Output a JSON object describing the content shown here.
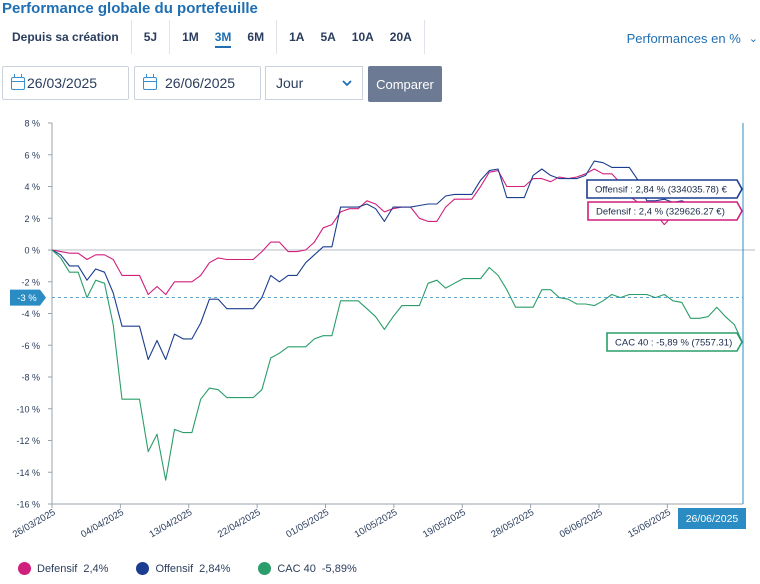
{
  "header": {
    "title": "Performance globale du portefeuille",
    "perf_label": "Performances en %"
  },
  "periods": [
    {
      "label": "Depuis sa création",
      "active": false
    },
    {
      "label": "5J",
      "active": false
    },
    {
      "label": "1M",
      "active": false
    },
    {
      "label": "3M",
      "active": true
    },
    {
      "label": "6M",
      "active": false
    },
    {
      "label": "1A",
      "active": false
    },
    {
      "label": "5A",
      "active": false
    },
    {
      "label": "10A",
      "active": false
    },
    {
      "label": "20A",
      "active": false
    }
  ],
  "controls": {
    "start_date": "26/03/2025",
    "end_date": "26/06/2025",
    "frequency": "Jour",
    "compare_label": "Comparer"
  },
  "colors": {
    "defensif": "#d11f7c",
    "offensif": "#1b3d8f",
    "cac40": "#2a9d6a",
    "accent": "#2b8cc4"
  },
  "chart_data": {
    "type": "line",
    "ylim": [
      -16,
      8
    ],
    "yticks": [
      8,
      6,
      4,
      2,
      0,
      -2,
      -4,
      -6,
      -8,
      -10,
      -12,
      -14,
      -16
    ],
    "ytick_labels": [
      "8 %",
      "6 %",
      "4 %",
      "2 %",
      "0 %",
      "-2 %",
      "-4 %",
      "-6 %",
      "-8 %",
      "-10 %",
      "-12 %",
      "-14 %",
      "-16 %"
    ],
    "x_tick_labels": [
      "26/03/2025",
      "04/04/2025",
      "13/04/2025",
      "22/04/2025",
      "01/05/2025",
      "10/05/2025",
      "19/05/2025",
      "28/05/2025",
      "06/06/2025",
      "15/06/2025"
    ],
    "x_range": [
      "26/03/2025",
      "26/06/2025"
    ],
    "crosshair": {
      "y_label": "-3 %",
      "y_value": -3,
      "x_label": "26/06/2025"
    },
    "series": [
      {
        "name": "Defensif",
        "legend_value": "2,4%",
        "tooltip": "Defensif : 2,4 % (329626.27 €)",
        "points": [
          [
            0,
            0
          ],
          [
            1,
            -0.1
          ],
          [
            2,
            -0.2
          ],
          [
            3,
            -0.2
          ],
          [
            4,
            -0.6
          ],
          [
            5,
            -0.3
          ],
          [
            6,
            -0.3
          ],
          [
            7,
            -0.6
          ],
          [
            8,
            -1.6
          ],
          [
            9,
            -1.6
          ],
          [
            10,
            -1.6
          ],
          [
            11,
            -2.8
          ],
          [
            12,
            -2.3
          ],
          [
            13,
            -2.8
          ],
          [
            14,
            -2.0
          ],
          [
            15,
            -2.0
          ],
          [
            16,
            -2.0
          ],
          [
            17,
            -1.6
          ],
          [
            18,
            -0.8
          ],
          [
            19,
            -0.5
          ],
          [
            20,
            -0.6
          ],
          [
            21,
            -0.6
          ],
          [
            22,
            -0.6
          ],
          [
            23,
            -0.6
          ],
          [
            24,
            -0.1
          ],
          [
            25,
            0.5
          ],
          [
            26,
            0.5
          ],
          [
            27,
            -0.1
          ],
          [
            28,
            -0.1
          ],
          [
            29,
            0.0
          ],
          [
            30,
            0.5
          ],
          [
            31,
            1.4
          ],
          [
            32,
            1.6
          ],
          [
            33,
            2.4
          ],
          [
            34,
            2.6
          ],
          [
            35,
            2.6
          ],
          [
            36,
            3.1
          ],
          [
            37,
            2.9
          ],
          [
            38,
            2.4
          ],
          [
            39,
            2.6
          ],
          [
            40,
            2.7
          ],
          [
            41,
            2.7
          ],
          [
            42,
            2.0
          ],
          [
            43,
            1.8
          ],
          [
            44,
            1.8
          ],
          [
            45,
            2.7
          ],
          [
            46,
            3.2
          ],
          [
            47,
            3.2
          ],
          [
            48,
            3.2
          ],
          [
            49,
            4.0
          ],
          [
            50,
            4.9
          ],
          [
            51,
            5.0
          ],
          [
            52,
            4.0
          ],
          [
            53,
            4.0
          ],
          [
            54,
            4.0
          ],
          [
            55,
            4.5
          ],
          [
            56,
            4.5
          ],
          [
            57,
            4.3
          ],
          [
            58,
            4.6
          ],
          [
            59,
            4.5
          ],
          [
            60,
            4.6
          ],
          [
            61,
            4.8
          ],
          [
            62,
            5.1
          ],
          [
            63,
            4.8
          ],
          [
            64,
            4.8
          ],
          [
            65,
            4.2
          ],
          [
            66,
            3.4
          ],
          [
            67,
            3.0
          ],
          [
            68,
            2.6
          ],
          [
            69,
            2.3
          ],
          [
            70,
            1.6
          ],
          [
            71,
            2.2
          ],
          [
            72,
            2.2
          ],
          [
            73,
            2.4
          ]
        ]
      },
      {
        "name": "Offensif",
        "legend_value": "2,84%",
        "tooltip": "Offensif : 2,84 % (334035.78) €",
        "points": [
          [
            0,
            0
          ],
          [
            1,
            -0.3
          ],
          [
            2,
            -1.0
          ],
          [
            3,
            -1.0
          ],
          [
            4,
            -1.9
          ],
          [
            5,
            -1.2
          ],
          [
            6,
            -1.4
          ],
          [
            7,
            -2.7
          ],
          [
            8,
            -4.8
          ],
          [
            9,
            -4.8
          ],
          [
            10,
            -4.8
          ],
          [
            11,
            -6.9
          ],
          [
            12,
            -5.7
          ],
          [
            13,
            -6.9
          ],
          [
            14,
            -5.3
          ],
          [
            15,
            -5.6
          ],
          [
            16,
            -5.6
          ],
          [
            17,
            -4.6
          ],
          [
            18,
            -3.1
          ],
          [
            19,
            -3.1
          ],
          [
            20,
            -3.7
          ],
          [
            21,
            -3.7
          ],
          [
            22,
            -3.7
          ],
          [
            23,
            -3.7
          ],
          [
            24,
            -3.0
          ],
          [
            25,
            -1.6
          ],
          [
            26,
            -2.0
          ],
          [
            27,
            -1.6
          ],
          [
            28,
            -1.6
          ],
          [
            29,
            -0.8
          ],
          [
            30,
            -0.3
          ],
          [
            31,
            0.2
          ],
          [
            32,
            0.2
          ],
          [
            33,
            2.7
          ],
          [
            34,
            2.7
          ],
          [
            35,
            2.7
          ],
          [
            36,
            2.9
          ],
          [
            37,
            2.6
          ],
          [
            38,
            1.8
          ],
          [
            39,
            2.7
          ],
          [
            40,
            2.7
          ],
          [
            41,
            2.7
          ],
          [
            42,
            2.8
          ],
          [
            43,
            2.9
          ],
          [
            44,
            2.9
          ],
          [
            45,
            3.4
          ],
          [
            46,
            3.5
          ],
          [
            47,
            3.5
          ],
          [
            48,
            3.5
          ],
          [
            49,
            4.4
          ],
          [
            50,
            5.0
          ],
          [
            51,
            5.1
          ],
          [
            52,
            3.3
          ],
          [
            53,
            3.3
          ],
          [
            54,
            3.3
          ],
          [
            55,
            4.7
          ],
          [
            56,
            5.1
          ],
          [
            57,
            4.7
          ],
          [
            58,
            4.5
          ],
          [
            59,
            4.5
          ],
          [
            60,
            4.5
          ],
          [
            61,
            4.7
          ],
          [
            62,
            5.6
          ],
          [
            63,
            5.5
          ],
          [
            64,
            5.2
          ],
          [
            65,
            5.2
          ],
          [
            66,
            5.2
          ],
          [
            67,
            4.4
          ],
          [
            68,
            3.1
          ],
          [
            69,
            3.1
          ],
          [
            70,
            3.2
          ],
          [
            71,
            3.0
          ],
          [
            72,
            3.1
          ],
          [
            73,
            2.84
          ]
        ]
      },
      {
        "name": "CAC 40",
        "legend_value": "-5,89%",
        "tooltip": "CAC 40 : -5,89 % (7557.31)",
        "points": [
          [
            0,
            0
          ],
          [
            1,
            -0.5
          ],
          [
            2,
            -1.4
          ],
          [
            3,
            -1.4
          ],
          [
            4,
            -3.0
          ],
          [
            5,
            -1.9
          ],
          [
            6,
            -2.1
          ],
          [
            7,
            -4.7
          ],
          [
            8,
            -9.4
          ],
          [
            9,
            -9.4
          ],
          [
            10,
            -9.4
          ],
          [
            11,
            -12.7
          ],
          [
            12,
            -11.6
          ],
          [
            13,
            -14.5
          ],
          [
            14,
            -11.3
          ],
          [
            15,
            -11.5
          ],
          [
            16,
            -11.5
          ],
          [
            17,
            -9.4
          ],
          [
            18,
            -8.7
          ],
          [
            19,
            -8.8
          ],
          [
            20,
            -9.3
          ],
          [
            21,
            -9.3
          ],
          [
            22,
            -9.3
          ],
          [
            23,
            -9.3
          ],
          [
            24,
            -8.8
          ],
          [
            25,
            -6.8
          ],
          [
            26,
            -6.5
          ],
          [
            27,
            -6.1
          ],
          [
            28,
            -6.1
          ],
          [
            29,
            -6.1
          ],
          [
            30,
            -5.6
          ],
          [
            31,
            -5.4
          ],
          [
            32,
            -5.4
          ],
          [
            33,
            -3.2
          ],
          [
            34,
            -3.2
          ],
          [
            35,
            -3.2
          ],
          [
            36,
            -3.7
          ],
          [
            37,
            -4.2
          ],
          [
            38,
            -5.0
          ],
          [
            39,
            -4.2
          ],
          [
            40,
            -3.5
          ],
          [
            41,
            -3.5
          ],
          [
            42,
            -3.5
          ],
          [
            43,
            -2.1
          ],
          [
            44,
            -1.9
          ],
          [
            45,
            -2.4
          ],
          [
            46,
            -2.1
          ],
          [
            47,
            -1.8
          ],
          [
            48,
            -1.8
          ],
          [
            49,
            -1.8
          ],
          [
            50,
            -1.1
          ],
          [
            51,
            -1.6
          ],
          [
            52,
            -2.5
          ],
          [
            53,
            -3.6
          ],
          [
            54,
            -3.6
          ],
          [
            55,
            -3.6
          ],
          [
            56,
            -2.5
          ],
          [
            57,
            -2.5
          ],
          [
            58,
            -3.0
          ],
          [
            59,
            -3.1
          ],
          [
            60,
            -3.4
          ],
          [
            61,
            -3.4
          ],
          [
            62,
            -3.5
          ],
          [
            63,
            -3.2
          ],
          [
            64,
            -2.8
          ],
          [
            65,
            -3.0
          ],
          [
            66,
            -2.8
          ],
          [
            67,
            -2.8
          ],
          [
            68,
            -2.8
          ],
          [
            69,
            -3.0
          ],
          [
            70,
            -2.8
          ],
          [
            71,
            -3.2
          ],
          [
            72,
            -3.3
          ],
          [
            73,
            -4.3
          ],
          [
            74,
            -4.3
          ],
          [
            75,
            -4.2
          ],
          [
            76,
            -3.6
          ],
          [
            77,
            -4.2
          ],
          [
            78,
            -4.7
          ],
          [
            79,
            -5.89
          ]
        ]
      }
    ],
    "legend_position": "bottom-left",
    "grid": "horizontal-zero-line"
  }
}
